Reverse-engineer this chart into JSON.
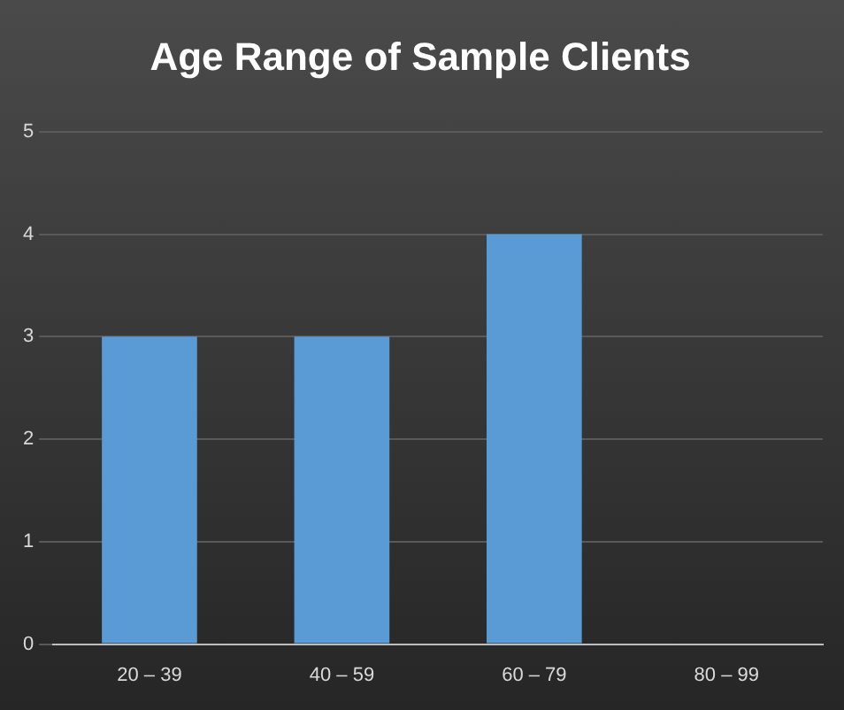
{
  "chart_data": {
    "type": "bar",
    "title": "Age Range of Sample Clients",
    "categories": [
      "20 – 39",
      "40 – 59",
      "60 – 79",
      "80 – 99"
    ],
    "values": [
      3,
      3,
      4,
      0
    ],
    "color": "#5b9bd5",
    "ylim": [
      0,
      5
    ],
    "yticks": [
      0,
      1,
      2,
      3,
      4,
      5
    ],
    "grid": "y"
  }
}
